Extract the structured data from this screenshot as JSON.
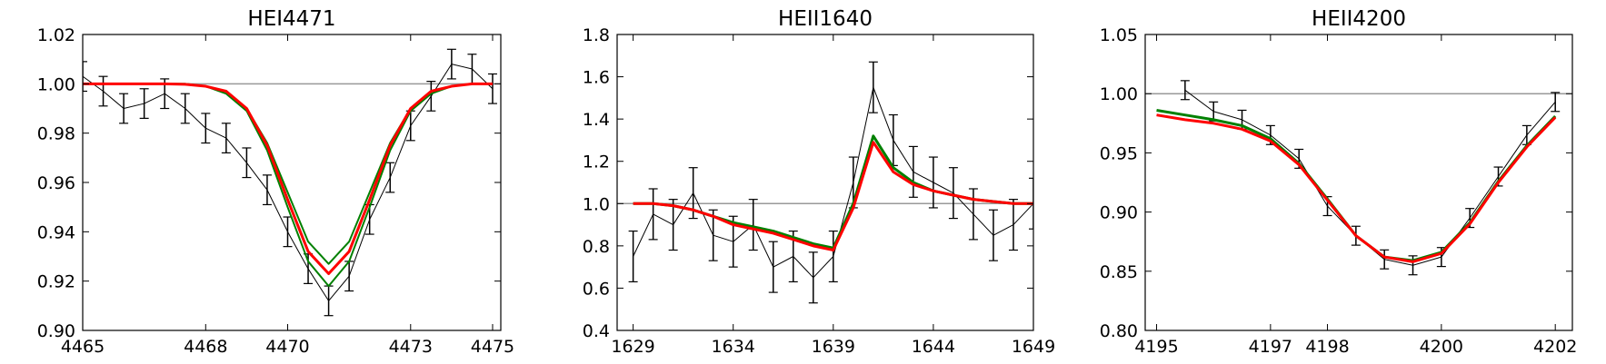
{
  "chart_data": [
    {
      "type": "line",
      "title": "HEI4471",
      "x": [
        4465,
        4465.5,
        4466,
        4466.5,
        4467,
        4467.5,
        4468,
        4468.5,
        4469,
        4469.5,
        4470,
        4470.5,
        4471,
        4471.5,
        4472,
        4472.5,
        4473,
        4473.5,
        4474,
        4474.5,
        4475
      ],
      "xlim": [
        4465,
        4475.2
      ],
      "xticks": [
        4465,
        4468,
        4470,
        4473,
        4475
      ],
      "ylim": [
        0.9,
        1.02
      ],
      "yticks": [
        {
          "value": 0.9,
          "label": "0.90"
        },
        0.92,
        0.94,
        0.96,
        0.98,
        {
          "value": 1.0,
          "label": "1.00"
        },
        1.02
      ],
      "hline": 1,
      "hline_color": "#999999",
      "series": [
        {
          "color": "#000000",
          "linewidth": 1,
          "values": [
            1.003,
            0.997,
            0.99,
            0.992,
            0.996,
            0.99,
            0.982,
            0.978,
            0.968,
            0.957,
            0.94,
            0.925,
            0.912,
            0.922,
            0.945,
            0.962,
            0.983,
            0.995,
            1.008,
            1.006,
            0.998
          ],
          "errors": [
            0.006,
            0.006,
            0.006,
            0.006,
            0.006,
            0.006,
            0.006,
            0.006,
            0.006,
            0.006,
            0.006,
            0.006,
            0.006,
            0.006,
            0.006,
            0.006,
            0.006,
            0.006,
            0.006,
            0.006,
            0.006
          ]
        },
        {
          "color": "#008000",
          "linewidth": 2,
          "values": [
            1,
            1,
            1,
            1,
            1,
            1,
            0.999,
            0.997,
            0.99,
            0.976,
            0.956,
            0.936,
            0.927,
            0.936,
            0.956,
            0.976,
            0.99,
            0.997,
            0.999,
            1,
            1
          ]
        },
        {
          "color": "#008000",
          "linewidth": 2,
          "values": [
            1,
            1,
            1,
            1,
            1,
            1,
            0.999,
            0.996,
            0.989,
            0.973,
            0.95,
            0.928,
            0.918,
            0.928,
            0.95,
            0.973,
            0.989,
            0.996,
            0.999,
            1,
            1
          ]
        },
        {
          "color": "#ff0000",
          "linewidth": 3,
          "values": [
            1,
            1,
            1,
            1,
            1,
            0.9998,
            0.999,
            0.997,
            0.99,
            0.975,
            0.953,
            0.932,
            0.923,
            0.932,
            0.953,
            0.975,
            0.99,
            0.997,
            0.999,
            1,
            1
          ]
        }
      ]
    },
    {
      "type": "line",
      "title": "HEII1640",
      "x": [
        1629,
        1630,
        1631,
        1632,
        1633,
        1634,
        1635,
        1636,
        1637,
        1638,
        1639,
        1640,
        1641,
        1642,
        1643,
        1644,
        1645,
        1646,
        1647,
        1648,
        1649
      ],
      "xlim": [
        1628.2,
        1649
      ],
      "xticks": [
        1629,
        1634,
        1639,
        1644,
        1649
      ],
      "ylim": [
        0.4,
        1.8
      ],
      "yticks": [
        0.4,
        0.6,
        0.8,
        {
          "value": 1.0,
          "label": "1.0"
        },
        1.2,
        1.4,
        1.6,
        1.8
      ],
      "hline": 1,
      "hline_color": "#999999",
      "series": [
        {
          "color": "#000000",
          "linewidth": 1,
          "values": [
            0.75,
            0.95,
            0.9,
            1.05,
            0.85,
            0.82,
            0.9,
            0.7,
            0.75,
            0.65,
            0.75,
            1.1,
            1.55,
            1.3,
            1.15,
            1.1,
            1.05,
            0.95,
            0.85,
            0.9,
            1.0
          ],
          "errors": [
            0.12,
            0.12,
            0.12,
            0.12,
            0.12,
            0.12,
            0.12,
            0.12,
            0.12,
            0.12,
            0.12,
            0.12,
            0.12,
            0.12,
            0.12,
            0.12,
            0.12,
            0.12,
            0.12,
            0.12,
            0.12
          ]
        },
        {
          "color": "#008000",
          "linewidth": 3,
          "values": [
            1.0,
            1.0,
            0.99,
            0.97,
            0.94,
            0.91,
            0.89,
            0.87,
            0.84,
            0.81,
            0.79,
            1.0,
            1.32,
            1.17,
            1.1,
            1.06,
            1.04,
            1.02,
            1.01,
            1.0,
            1.0
          ]
        },
        {
          "color": "#ff0000",
          "linewidth": 3,
          "values": [
            1.0,
            1.0,
            0.99,
            0.97,
            0.94,
            0.9,
            0.88,
            0.86,
            0.83,
            0.8,
            0.78,
            0.98,
            1.29,
            1.15,
            1.09,
            1.06,
            1.04,
            1.02,
            1.01,
            1.0,
            1.0
          ]
        }
      ]
    },
    {
      "type": "line",
      "title": "HEII4200",
      "x": [
        4195,
        4195.5,
        4196,
        4196.5,
        4197,
        4197.5,
        4198,
        4198.5,
        4199,
        4199.5,
        4200,
        4200.5,
        4201,
        4201.5,
        4202
      ],
      "xlim": [
        4194.8,
        4202.3
      ],
      "xticks": [
        4195,
        4197,
        4198,
        4200,
        4202
      ],
      "ylim": [
        0.8,
        1.05
      ],
      "yticks": [
        {
          "value": 0.8,
          "label": "0.80"
        },
        0.85,
        {
          "value": 0.9,
          "label": "0.90"
        },
        0.95,
        {
          "value": 1.0,
          "label": "1.00"
        },
        1.05
      ],
      "hline": 1,
      "hline_color": "#999999",
      "series": [
        {
          "color": "#000000",
          "linewidth": 1,
          "values": [
            null,
            1.003,
            0.985,
            0.978,
            0.965,
            0.945,
            0.905,
            0.88,
            0.86,
            0.855,
            0.862,
            0.895,
            0.93,
            0.965,
            0.993
          ],
          "errors": [
            null,
            0.008,
            0.008,
            0.008,
            0.008,
            0.008,
            0.008,
            0.008,
            0.008,
            0.008,
            0.008,
            0.008,
            0.008,
            0.008,
            0.008
          ]
        },
        {
          "color": "#008000",
          "linewidth": 3,
          "values": [
            0.986,
            0.982,
            0.978,
            0.973,
            0.962,
            0.941,
            0.911,
            0.88,
            0.862,
            0.859,
            0.866,
            0.891,
            0.926,
            0.956,
            0.981
          ]
        },
        {
          "color": "#ff0000",
          "linewidth": 3,
          "values": [
            0.982,
            0.978,
            0.975,
            0.97,
            0.96,
            0.94,
            0.91,
            0.88,
            0.862,
            0.858,
            0.865,
            0.89,
            0.925,
            0.955,
            0.98
          ]
        }
      ]
    }
  ]
}
